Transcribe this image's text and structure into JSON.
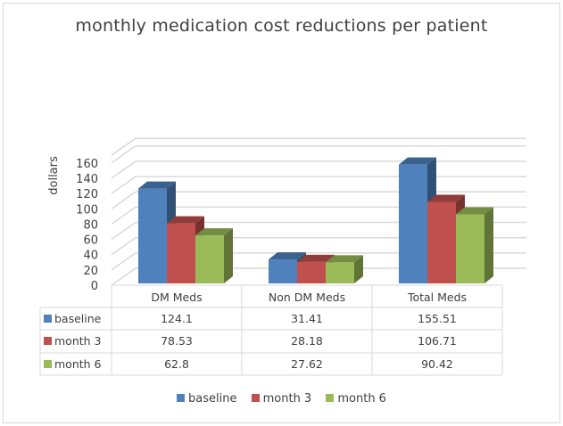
{
  "chart_data": {
    "type": "bar",
    "title": "monthly medication cost reductions per patient",
    "xlabel": "",
    "ylabel": "dollars",
    "ylim": [
      0,
      170
    ],
    "yticks": [
      0,
      20,
      40,
      60,
      80,
      100,
      120,
      140,
      160
    ],
    "grid": true,
    "style": "3d-clustered-column",
    "categories": [
      "DM Meds",
      "Non DM Meds",
      "Total Meds"
    ],
    "series": [
      {
        "name": "baseline",
        "color": "#4f81bd",
        "values": [
          124.1,
          31.41,
          155.51
        ],
        "labels": [
          "124.1",
          "31.41",
          "155.51"
        ]
      },
      {
        "name": "month 3",
        "color": "#c0504d",
        "values": [
          78.53,
          28.18,
          106.71
        ],
        "labels": [
          "78.53",
          "28.18",
          "106.71"
        ]
      },
      {
        "name": "month 6",
        "color": "#9bbb59",
        "values": [
          62.8,
          27.62,
          90.42
        ],
        "labels": [
          "62.8",
          "27.62",
          "90.42"
        ]
      }
    ],
    "data_table": true,
    "legend_position": "bottom"
  },
  "legend": [
    {
      "label": "baseline",
      "color": "#4f81bd"
    },
    {
      "label": "month 3",
      "color": "#c0504d"
    },
    {
      "label": "month 6",
      "color": "#9bbb59"
    }
  ]
}
